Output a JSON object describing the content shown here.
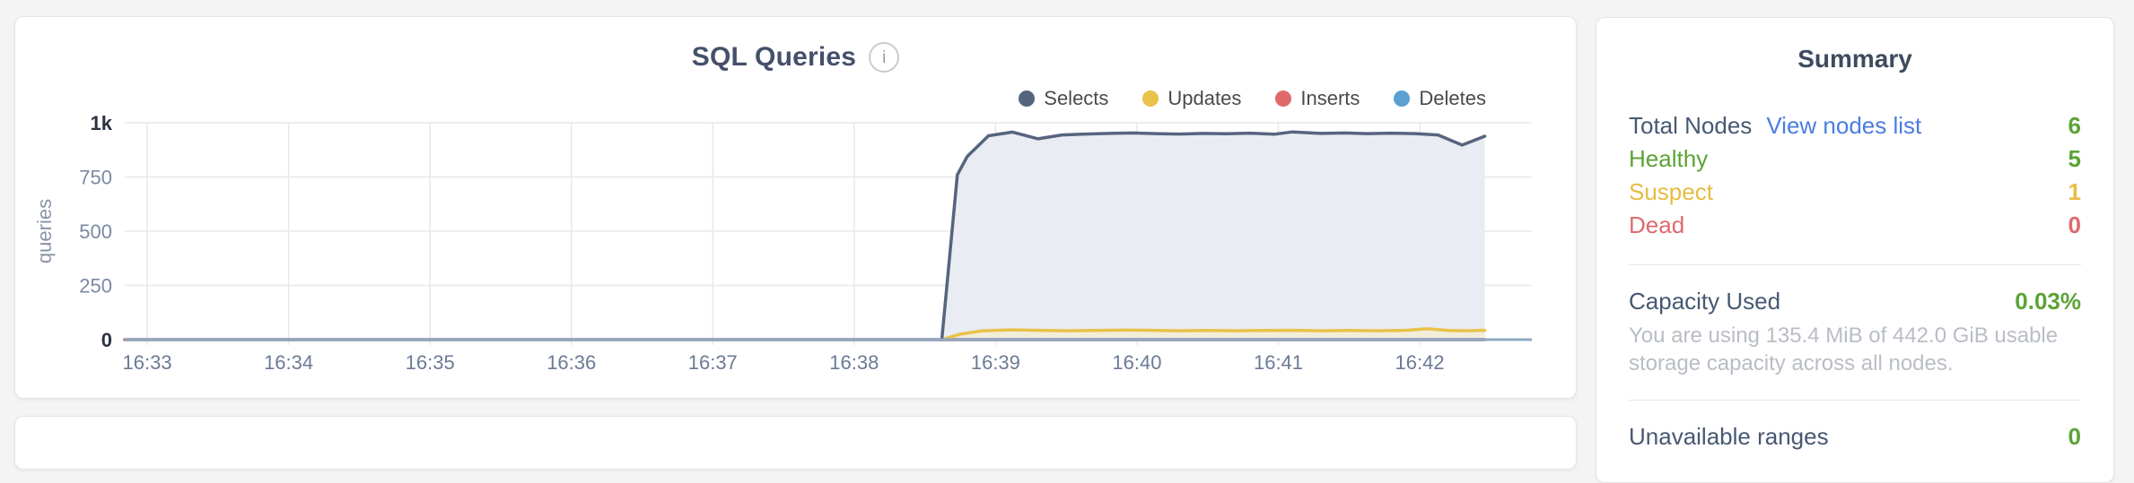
{
  "chart_panel": {
    "info_icon_glyph": "i"
  },
  "chart_data": {
    "type": "area",
    "title": "SQL Queries",
    "ylabel": "queries",
    "ylim": [
      0,
      1000
    ],
    "x_domain": [
      32.841,
      42.793
    ],
    "grid": true,
    "legend_position": "top-right",
    "axis_line_color": "#8fa9c4",
    "y_ticks": [
      {
        "value": 0,
        "label": "0",
        "emph": true
      },
      {
        "value": 250,
        "label": "250",
        "emph": false
      },
      {
        "value": 500,
        "label": "500",
        "emph": false
      },
      {
        "value": 750,
        "label": "750",
        "emph": false
      },
      {
        "value": 1000,
        "label": "1k",
        "emph": true
      }
    ],
    "x_ticks": [
      {
        "value": 33,
        "label": "16:33"
      },
      {
        "value": 34,
        "label": "16:34"
      },
      {
        "value": 35,
        "label": "16:35"
      },
      {
        "value": 36,
        "label": "16:36"
      },
      {
        "value": 37,
        "label": "16:37"
      },
      {
        "value": 38,
        "label": "16:38"
      },
      {
        "value": 39,
        "label": "16:39"
      },
      {
        "value": 40,
        "label": "16:40"
      },
      {
        "value": 41,
        "label": "16:41"
      },
      {
        "value": 42,
        "label": "16:42"
      }
    ],
    "series": [
      {
        "name": "Selects",
        "color": "#56647f",
        "fill": "#e9ecf2",
        "points": [
          [
            38.62,
            0
          ],
          [
            38.73,
            760
          ],
          [
            38.8,
            845
          ],
          [
            38.95,
            940
          ],
          [
            39.12,
            957
          ],
          [
            39.3,
            926
          ],
          [
            39.47,
            944
          ],
          [
            39.63,
            948
          ],
          [
            39.8,
            951
          ],
          [
            39.97,
            953
          ],
          [
            40.13,
            950
          ],
          [
            40.3,
            948
          ],
          [
            40.47,
            951
          ],
          [
            40.63,
            949
          ],
          [
            40.8,
            952
          ],
          [
            40.97,
            947
          ],
          [
            41.1,
            958
          ],
          [
            41.3,
            951
          ],
          [
            41.47,
            953
          ],
          [
            41.63,
            950
          ],
          [
            41.8,
            952
          ],
          [
            41.97,
            950
          ],
          [
            42.13,
            944
          ],
          [
            42.3,
            897
          ],
          [
            42.46,
            938
          ]
        ]
      },
      {
        "name": "Updates",
        "color": "#e9c24a",
        "fill": "#f3eeda",
        "points": [
          [
            38.62,
            0
          ],
          [
            38.75,
            25
          ],
          [
            38.9,
            40
          ],
          [
            39.1,
            45
          ],
          [
            39.3,
            43
          ],
          [
            39.5,
            41
          ],
          [
            39.7,
            42
          ],
          [
            39.9,
            44
          ],
          [
            40.1,
            43
          ],
          [
            40.3,
            41
          ],
          [
            40.5,
            42
          ],
          [
            40.7,
            41
          ],
          [
            40.9,
            42
          ],
          [
            41.1,
            43
          ],
          [
            41.3,
            41
          ],
          [
            41.5,
            42
          ],
          [
            41.7,
            41
          ],
          [
            41.9,
            43
          ],
          [
            42.05,
            50
          ],
          [
            42.2,
            42
          ],
          [
            42.33,
            41
          ],
          [
            42.46,
            43
          ]
        ]
      },
      {
        "name": "Inserts",
        "color": "#e0696b",
        "fill": null,
        "points": [
          [
            32.841,
            0
          ],
          [
            42.46,
            0
          ]
        ]
      },
      {
        "name": "Deletes",
        "color": "#5b9fd3",
        "fill": null,
        "points": [
          [
            32.841,
            0
          ],
          [
            42.46,
            0
          ]
        ]
      }
    ]
  },
  "summary_panel": {
    "title": "Summary",
    "node_rows": [
      {
        "label": "Total Nodes",
        "link": "View nodes list",
        "link_color": "#4a7ce0",
        "value": "6",
        "label_color": "#475872",
        "value_color": "#5ba336"
      },
      {
        "label": "Healthy",
        "value": "5",
        "label_color": "#5ba336",
        "value_color": "#5ba336"
      },
      {
        "label": "Suspect",
        "value": "1",
        "label_color": "#e7bc42",
        "value_color": "#e7bc42"
      },
      {
        "label": "Dead",
        "value": "0",
        "label_color": "#de6a70",
        "value_color": "#de6a70"
      }
    ],
    "capacity": {
      "label": "Capacity Used",
      "label_color": "#475872",
      "value": "0.03%",
      "value_color": "#5ba336",
      "description": "You are using 135.4 MiB of 442.0 GiB usable storage capacity across all nodes."
    },
    "ranges": {
      "label": "Unavailable ranges",
      "label_color": "#475872",
      "value": "0",
      "value_color": "#5ba336"
    }
  }
}
